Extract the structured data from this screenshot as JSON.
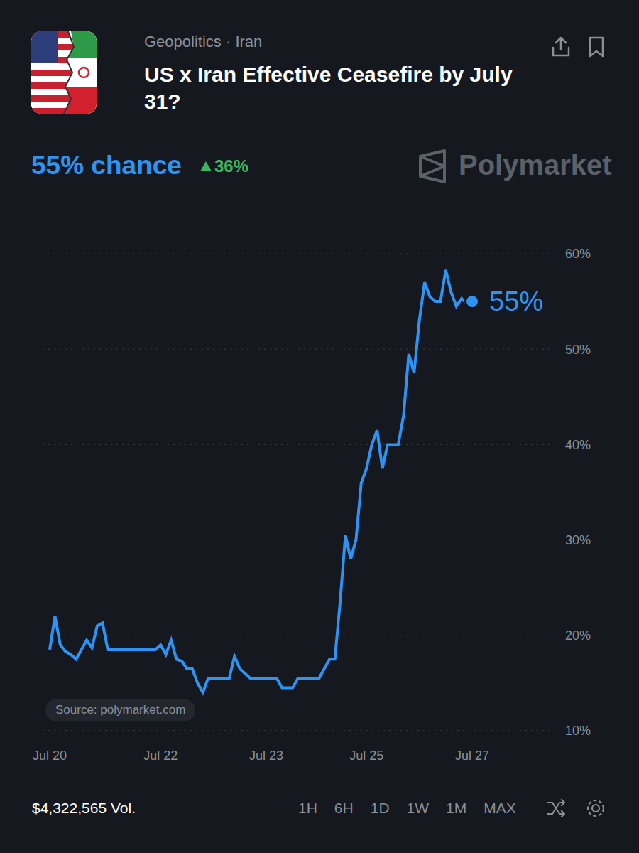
{
  "chart_data": {
    "type": "line",
    "title": "US x Iran Effective Ceasefire by July 31?",
    "subtitle": "Geopolitics · Iran",
    "headline": "55% chance",
    "change": "36%",
    "brand": "Polymarket",
    "source": "Source: polymarket.com",
    "volume": "$4,322,565 Vol.",
    "range_buttons": [
      "1H",
      "6H",
      "1D",
      "1W",
      "1M",
      "MAX"
    ],
    "end_label": "55%",
    "color": "#2b94f5",
    "grid": true,
    "categories": [
      "Jul 20",
      null,
      null,
      null,
      null,
      null,
      null,
      null,
      null,
      null,
      null,
      null,
      null,
      null,
      null,
      null,
      null,
      null,
      null,
      null,
      null,
      "Jul 22",
      null,
      null,
      null,
      null,
      null,
      null,
      null,
      null,
      null,
      null,
      null,
      null,
      null,
      null,
      null,
      null,
      null,
      null,
      null,
      "Jul 23",
      null,
      null,
      null,
      null,
      null,
      null,
      null,
      null,
      null,
      null,
      null,
      null,
      null,
      null,
      null,
      null,
      null,
      null,
      "Jul 25",
      null,
      null,
      null,
      null,
      null,
      null,
      null,
      null,
      null,
      null,
      null,
      null,
      null,
      null,
      null,
      null,
      null,
      null,
      null,
      "Jul 27"
    ],
    "values": [
      18.5,
      22,
      19,
      18.3,
      18,
      17.5,
      18.5,
      19.5,
      18.7,
      21,
      21.3,
      18.5,
      18.5,
      18.5,
      18.5,
      18.5,
      18.5,
      18.5,
      18.5,
      18.5,
      18.5,
      19,
      18,
      19.5,
      17.5,
      17.3,
      16.5,
      16.5,
      15,
      14,
      15.5,
      15.5,
      15.5,
      15.5,
      15.5,
      17.8,
      16.5,
      16,
      15.5,
      15.5,
      15.5,
      15.5,
      15.5,
      15.5,
      14.5,
      14.5,
      14.5,
      15.5,
      15.5,
      15.5,
      15.5,
      15.5,
      16.5,
      17.5,
      17.5,
      23.5,
      30.5,
      28,
      30,
      36,
      37.5,
      40,
      41.5,
      37.5,
      40,
      40,
      40,
      43,
      49.5,
      47.5,
      53,
      57,
      55.5,
      55,
      55,
      58.3,
      56,
      54.5,
      55.3,
      54.8,
      55
    ],
    "ylim": [
      10,
      60
    ],
    "yticks": [
      {
        "value": 10,
        "label": "10%"
      },
      {
        "value": 20,
        "label": "20%"
      },
      {
        "value": 30,
        "label": "30%"
      },
      {
        "value": 40,
        "label": "40%"
      },
      {
        "value": 50,
        "label": "50%"
      },
      {
        "value": 60,
        "label": "60%"
      }
    ]
  }
}
